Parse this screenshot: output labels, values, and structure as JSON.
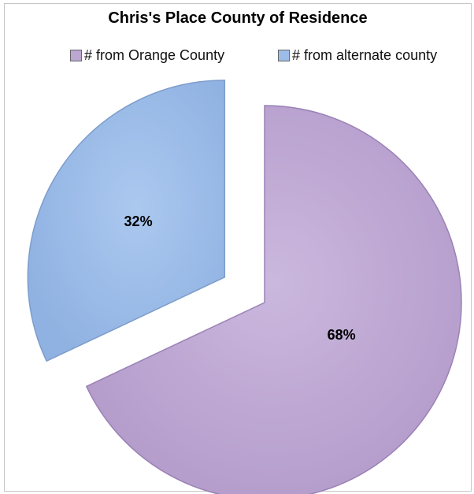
{
  "chart_data": {
    "type": "pie",
    "title": "Chris's Place County of Residence",
    "series": [
      {
        "name": "# from Orange County",
        "value": 68,
        "label": "68%",
        "color": "#bca6d2",
        "edge": "#9a82b6"
      },
      {
        "name": "# from alternate county",
        "value": 32,
        "label": "32%",
        "color": "#9dbde9",
        "edge": "#7d9dcb"
      }
    ],
    "legend_position": "top",
    "start_angle_deg": 0,
    "exploded": true
  }
}
